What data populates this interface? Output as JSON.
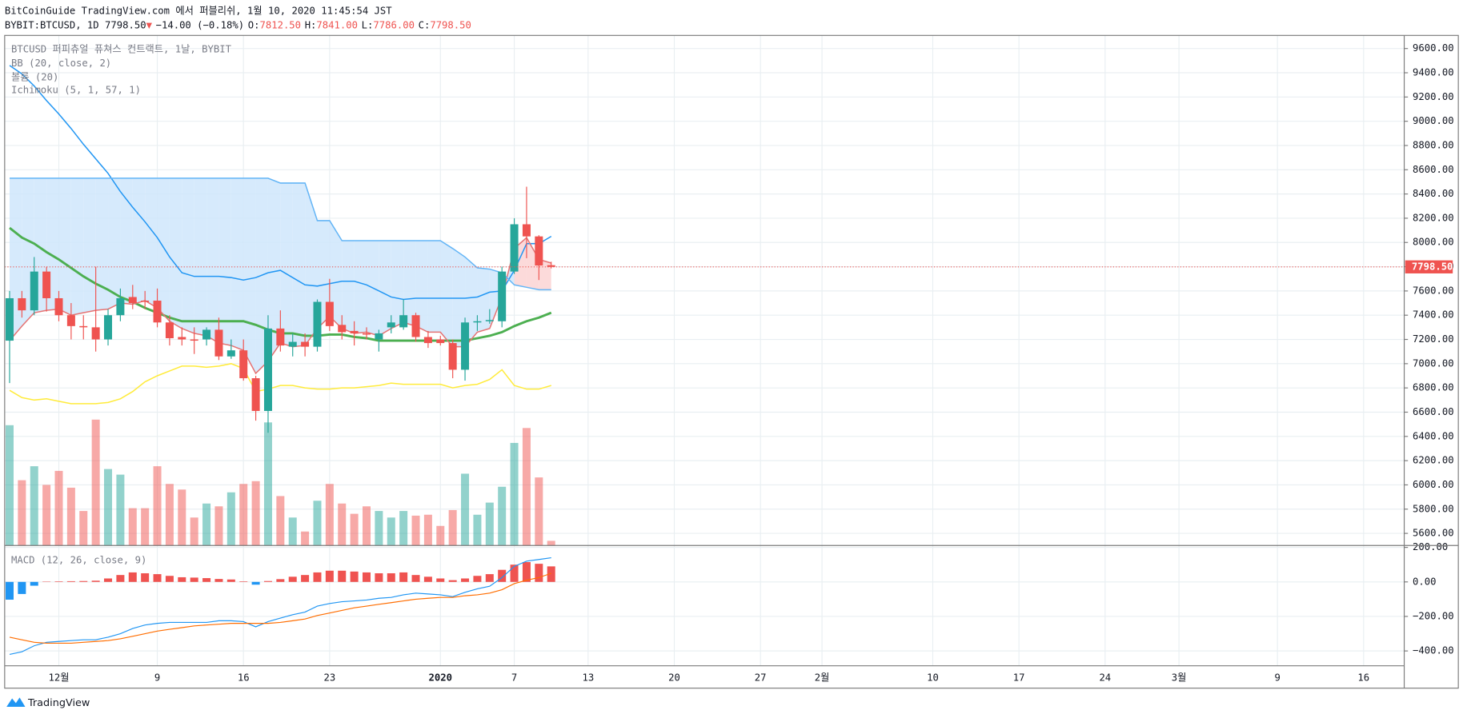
{
  "header": {
    "title": "BitCoinGuide TradingView.com 에서 퍼블리쉬, 1월 10, 2020 11:45:54 JST",
    "symbol": "BYBIT:BTCUSD, 1D 7798.50",
    "arrow": "▼",
    "change": "−14.00 (−0.18%)",
    "o_label": "O:",
    "open": "7812.50",
    "h_label": "H:",
    "high": "7841.00",
    "l_label": "L:",
    "low": "7786.00",
    "c_label": "C:",
    "close": "7798.50",
    "last_price": "7798.50"
  },
  "footer": {
    "brand": "TradingView"
  },
  "chart_data": [
    {
      "type": "candlestick",
      "title": "BTCUSD 퍼피츄얼 퓨쳐스 컨트랙트, 1날, BYBIT",
      "indicator_labels": [
        "BB (20, close, 2)",
        "볼륨 (20)",
        "Ichimoku (5, 1, 57, 1)"
      ],
      "xlim": [
        -0.4,
        113.3
      ],
      "xticks": [
        {
          "value": 4,
          "label": "12월"
        },
        {
          "value": 12,
          "label": "9"
        },
        {
          "value": 19,
          "label": "16"
        },
        {
          "value": 26,
          "label": "23"
        },
        {
          "value": 35,
          "label": "2020"
        },
        {
          "value": 41,
          "label": "7"
        },
        {
          "value": 47,
          "label": "13"
        },
        {
          "value": 54,
          "label": "20"
        },
        {
          "value": 61,
          "label": "27"
        },
        {
          "value": 66,
          "label": "2월"
        },
        {
          "value": 75,
          "label": "10"
        },
        {
          "value": 82,
          "label": "17"
        },
        {
          "value": 89,
          "label": "24"
        },
        {
          "value": 95,
          "label": "3월"
        },
        {
          "value": 103,
          "label": "9"
        },
        {
          "value": 110,
          "label": "16"
        }
      ],
      "ylim": [
        5500,
        9708
      ],
      "yticks": [
        {
          "value": 5600,
          "label": "5600.00"
        },
        {
          "value": 5800,
          "label": "5800.00"
        },
        {
          "value": 6000,
          "label": "6000.00"
        },
        {
          "value": 6200,
          "label": "6200.00"
        },
        {
          "value": 6400,
          "label": "6400.00"
        },
        {
          "value": 6600,
          "label": "6600.00"
        },
        {
          "value": 6800,
          "label": "6800.00"
        },
        {
          "value": 7000,
          "label": "7000.00"
        },
        {
          "value": 7200,
          "label": "7200.00"
        },
        {
          "value": 7400,
          "label": "7400.00"
        },
        {
          "value": 7600,
          "label": "7600.00"
        },
        {
          "value": 7800,
          "label": "7800.00"
        },
        {
          "value": 8000,
          "label": "8000.00"
        },
        {
          "value": 8200,
          "label": "8200.00"
        },
        {
          "value": 8400,
          "label": "8400.00"
        },
        {
          "value": 8600,
          "label": "8600.00"
        },
        {
          "value": 8800,
          "label": "8800.00"
        },
        {
          "value": 9000,
          "label": "9000.00"
        },
        {
          "value": 9200,
          "label": "9200.00"
        },
        {
          "value": 9400,
          "label": "9400.00"
        },
        {
          "value": 9600,
          "label": "9600.00"
        }
      ],
      "grid": true,
      "up_color": "#26a69a",
      "down_color": "#ef5350",
      "open": [
        7190,
        7540,
        7440,
        7760,
        7540,
        7400,
        7310,
        7300,
        7200,
        7400,
        7550,
        7520,
        7520,
        7340,
        7220,
        7200,
        7200,
        7280,
        7060,
        7110,
        6880,
        6610,
        7290,
        7140,
        7180,
        7140,
        7510,
        7320,
        7270,
        7250,
        7200,
        7300,
        7300,
        7400,
        7220,
        7200,
        7170,
        6950,
        7340,
        7350,
        7350,
        7760,
        8150,
        8050,
        7812.5
      ],
      "high": [
        7600,
        7600,
        7880,
        7800,
        7600,
        7500,
        7400,
        7800,
        7450,
        7620,
        7650,
        7600,
        7620,
        7400,
        7300,
        7300,
        7300,
        7380,
        7200,
        7200,
        6900,
        7400,
        7440,
        7250,
        7250,
        7530,
        7700,
        7400,
        7350,
        7300,
        7280,
        7400,
        7530,
        7420,
        7270,
        7230,
        7200,
        7380,
        7400,
        7450,
        7800,
        8200,
        8460,
        8060,
        7841
      ],
      "low": [
        6840,
        7380,
        7400,
        7430,
        7350,
        7200,
        7200,
        7100,
        7150,
        7350,
        7450,
        7450,
        7300,
        7150,
        7150,
        7080,
        7150,
        7030,
        7040,
        6860,
        6530,
        6430,
        7100,
        7060,
        7060,
        7100,
        7270,
        7200,
        7150,
        7200,
        7100,
        7250,
        7280,
        7180,
        7130,
        7150,
        6880,
        6860,
        7270,
        7330,
        7300,
        7740,
        7870,
        7690,
        7786
      ],
      "close": [
        7540,
        7440,
        7760,
        7540,
        7400,
        7310,
        7300,
        7200,
        7400,
        7540,
        7500,
        7510,
        7340,
        7210,
        7200,
        7190,
        7280,
        7060,
        7110,
        6880,
        6610,
        7290,
        7150,
        7180,
        7140,
        7510,
        7310,
        7260,
        7250,
        7240,
        7250,
        7340,
        7400,
        7220,
        7170,
        7170,
        6950,
        7340,
        7350,
        7360,
        7760,
        8150,
        8050,
        7810,
        7798.5
      ],
      "volume": [
        129,
        70,
        85,
        65,
        80,
        62,
        37,
        135,
        82,
        76,
        40,
        40,
        85,
        66,
        60,
        30,
        45,
        42,
        57,
        66,
        69,
        132,
        53,
        30,
        15,
        48,
        66,
        45,
        34,
        42,
        37,
        30,
        37,
        32,
        33,
        21,
        38,
        77,
        33,
        46,
        63,
        110,
        126,
        73,
        5
      ],
      "volume_lim": [
        0,
        140
      ],
      "series": [
        {
          "color": "#2196f3",
          "values": [
            9460,
            9390,
            9290,
            9170,
            9060,
            8940,
            8810,
            8690,
            8570,
            8420,
            8290,
            8170,
            8040,
            7880,
            7750,
            7720,
            7720,
            7720,
            7710,
            7690,
            7710,
            7750,
            7770,
            7710,
            7650,
            7640,
            7660,
            7680,
            7680,
            7650,
            7600,
            7550,
            7530,
            7540,
            7540,
            7540,
            7540,
            7540,
            7550,
            7590,
            7600,
            7770,
            7990,
            7990,
            8050
          ]
        },
        {
          "color": "#4caf50",
          "width": 2.5,
          "values": [
            8120,
            8040,
            7990,
            7920,
            7860,
            7790,
            7720,
            7660,
            7610,
            7550,
            7510,
            7460,
            7420,
            7380,
            7350,
            7350,
            7350,
            7350,
            7350,
            7350,
            7320,
            7280,
            7250,
            7250,
            7230,
            7230,
            7240,
            7240,
            7220,
            7210,
            7190,
            7190,
            7190,
            7190,
            7190,
            7190,
            7190,
            7190,
            7210,
            7230,
            7260,
            7310,
            7350,
            7380,
            7420
          ]
        },
        {
          "color": "#ffeb3b",
          "values": [
            6780,
            6720,
            6700,
            6710,
            6690,
            6670,
            6670,
            6670,
            6680,
            6710,
            6770,
            6850,
            6900,
            6940,
            6980,
            6980,
            6970,
            6980,
            7000,
            6960,
            6770,
            6790,
            6820,
            6820,
            6800,
            6790,
            6790,
            6800,
            6800,
            6810,
            6820,
            6840,
            6830,
            6830,
            6830,
            6830,
            6800,
            6820,
            6830,
            6870,
            6950,
            6820,
            6790,
            6790,
            6820
          ]
        },
        {
          "color": "#e57373",
          "cloud": "a",
          "values": [
            7190,
            7310,
            7420,
            7440,
            7450,
            7400,
            7420,
            7440,
            7450,
            7500,
            7490,
            7520,
            7460,
            7350,
            7290,
            7250,
            7230,
            7170,
            7150,
            7110,
            6920,
            7020,
            7170,
            7140,
            7150,
            7290,
            7390,
            7290,
            7250,
            7260,
            7230,
            7290,
            7340,
            7310,
            7260,
            7260,
            7140,
            7140,
            7260,
            7290,
            7550,
            7950,
            8040,
            7860,
            7830
          ]
        },
        {
          "color": "#64b5f6",
          "cloud": "b",
          "values": [
            8530,
            8530,
            8530,
            8530,
            8530,
            8530,
            8530,
            8530,
            8530,
            8530,
            8530,
            8530,
            8530,
            8530,
            8530,
            8530,
            8530,
            8530,
            8530,
            8530,
            8530,
            8530,
            8490,
            8490,
            8490,
            8180,
            8180,
            8015,
            8015,
            8015,
            8015,
            8015,
            8015,
            8015,
            8015,
            8015,
            7950,
            7880,
            7790,
            7780,
            7750,
            7650,
            7630,
            7610,
            7610
          ]
        }
      ],
      "cloud_colors": [
        "#cfe6fb",
        "#fbd3d3"
      ]
    },
    {
      "type": "macd",
      "title": "MACD (12, 26, close, 9)",
      "ylim": [
        -486,
        211
      ],
      "yticks": [
        {
          "value": 200,
          "label": "200.00"
        },
        {
          "value": 0,
          "label": "0.00"
        },
        {
          "value": -200,
          "label": "−200.00"
        },
        {
          "value": -400,
          "label": "−400.00"
        }
      ],
      "histogram": [
        -103,
        -70,
        -22,
        2,
        3,
        4,
        5,
        7,
        20,
        40,
        55,
        50,
        45,
        35,
        27,
        25,
        22,
        17,
        14,
        3,
        -16,
        5,
        16,
        30,
        40,
        55,
        65,
        65,
        60,
        55,
        50,
        50,
        55,
        40,
        30,
        20,
        10,
        20,
        35,
        45,
        70,
        100,
        115,
        105,
        90
      ],
      "histogram_colors": [
        "#ef5350",
        "#2196f3"
      ],
      "series": [
        {
          "color": "#2196f3",
          "values": [
            -420,
            -405,
            -370,
            -350,
            -345,
            -340,
            -335,
            -335,
            -320,
            -300,
            -270,
            -250,
            -240,
            -235,
            -235,
            -235,
            -235,
            -225,
            -225,
            -230,
            -260,
            -230,
            -210,
            -190,
            -175,
            -140,
            -125,
            -115,
            -110,
            -105,
            -95,
            -90,
            -75,
            -65,
            -70,
            -75,
            -85,
            -60,
            -40,
            -25,
            25,
            90,
            120,
            130,
            140
          ]
        },
        {
          "color": "#ff6d00",
          "values": [
            -320,
            -335,
            -350,
            -355,
            -355,
            -355,
            -350,
            -345,
            -340,
            -330,
            -315,
            -300,
            -285,
            -275,
            -265,
            -255,
            -250,
            -245,
            -240,
            -240,
            -240,
            -240,
            -235,
            -225,
            -215,
            -195,
            -180,
            -165,
            -150,
            -140,
            -130,
            -120,
            -110,
            -100,
            -95,
            -90,
            -90,
            -80,
            -75,
            -65,
            -45,
            -10,
            10,
            25,
            50
          ]
        }
      ]
    }
  ]
}
